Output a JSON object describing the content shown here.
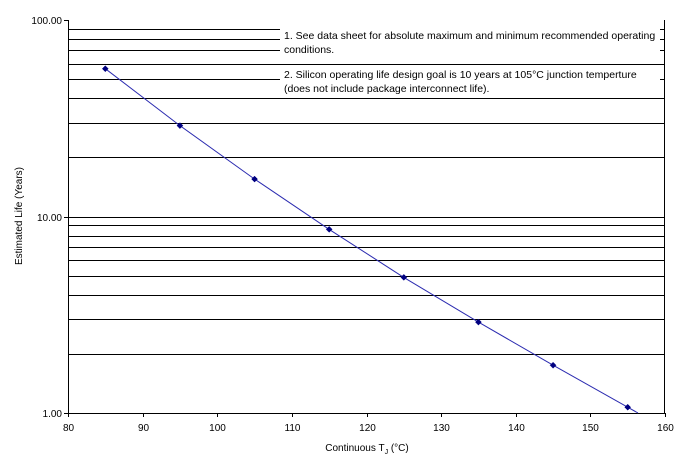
{
  "chart_data": {
    "type": "line",
    "xlabel": "Continuous T",
    "xlabel_subscript": "J",
    "xlabel_unit": " (°C)",
    "ylabel": "Estimated Life (Years)",
    "xlim": [
      80,
      160
    ],
    "ylim": [
      1,
      100
    ],
    "yscale": "log",
    "x_ticks": [
      "80",
      "90",
      "100",
      "110",
      "120",
      "130",
      "140",
      "150",
      "160"
    ],
    "y_ticks": [
      "1.00",
      "10.00",
      "100.00"
    ],
    "grid": "horizontal-major-and-minor",
    "series": [
      {
        "x": [
          85,
          95,
          105,
          115,
          125,
          135,
          145,
          155
        ],
        "y": [
          56.5,
          29.0,
          15.5,
          8.6,
          4.9,
          2.9,
          1.75,
          1.07
        ],
        "color": "#2b2bb0",
        "marker": "diamond",
        "marker_color": "#000080"
      }
    ],
    "annotations": [
      "1. See data sheet for absolute maximum and minimum recommended operating conditions.",
      "2. Silicon operating life design goal is 10 years at 105°C junction temperture (does not include package interconnect life)."
    ]
  }
}
